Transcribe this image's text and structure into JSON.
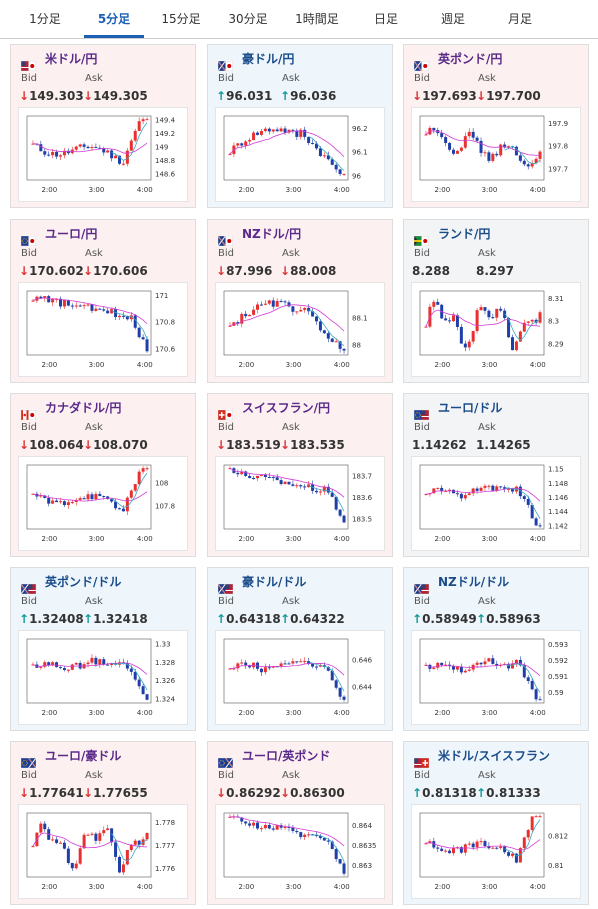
{
  "tabs": [
    "1分足",
    "5分足",
    "15分足",
    "30分足",
    "1時間足",
    "日足",
    "週足",
    "月足"
  ],
  "active_tab": "5分足",
  "labels": {
    "bid": "Bid",
    "ask": "Ask"
  },
  "colors": {
    "down_bg": "#fdf0f0",
    "up_bg": "#eef6fc",
    "down_arrow": "#d33333",
    "up_arrow": "#119999",
    "candle_up": "#e83030",
    "candle_down": "#1f3fa8",
    "ma_purple": "#d23ad6",
    "ma_teal": "#3ba8c0"
  },
  "cards": [
    {
      "pair": "米ドル/円",
      "flag": "us-jp-flag",
      "dir": "down",
      "bid": "149.303",
      "ask": "149.305",
      "chart_data": {
        "type": "candlestick",
        "x_ticks": [
          "2:00",
          "3:00",
          "4:00"
        ],
        "y_ticks": [
          "149.4",
          "149.2",
          "149",
          "148.8",
          "148.6"
        ],
        "ylim": [
          148.5,
          149.45
        ],
        "trend": "dip-recover"
      }
    },
    {
      "pair": "豪ドル/円",
      "flag": "au-jp-flag",
      "dir": "up",
      "bid": "96.031",
      "ask": "96.036",
      "chart_data": {
        "type": "candlestick",
        "x_ticks": [
          "2:00",
          "3:00",
          "4:00"
        ],
        "y_ticks": [
          "96.2",
          "96.1",
          "96"
        ],
        "ylim": [
          95.98,
          96.25
        ],
        "trend": "rise-fall"
      }
    },
    {
      "pair": "英ポンド/円",
      "flag": "gb-jp-flag",
      "dir": "down",
      "bid": "197.693",
      "ask": "197.700",
      "chart_data": {
        "type": "candlestick",
        "x_ticks": [
          "2:00",
          "3:00",
          "4:00"
        ],
        "y_ticks": [
          "197.9",
          "197.8",
          "197.7"
        ],
        "ylim": [
          197.65,
          197.93
        ],
        "trend": "choppy-fall"
      }
    },
    {
      "pair": "ユーロ/円",
      "flag": "eu-jp-flag",
      "dir": "down",
      "bid": "170.602",
      "ask": "170.606",
      "chart_data": {
        "type": "candlestick",
        "x_ticks": [
          "2:00",
          "3:00",
          "4:00"
        ],
        "y_ticks": [
          "171",
          "170.8",
          "170.6"
        ],
        "ylim": [
          170.55,
          171.03
        ],
        "trend": "steady-fall"
      }
    },
    {
      "pair": "NZドル/円",
      "flag": "nz-jp-flag",
      "dir": "down",
      "bid": "87.996",
      "ask": "88.008",
      "chart_data": {
        "type": "candlestick",
        "x_ticks": [
          "2:00",
          "3:00",
          "4:00"
        ],
        "y_ticks": [
          "88.1",
          "88"
        ],
        "ylim": [
          87.96,
          88.2
        ],
        "trend": "rise-fall"
      }
    },
    {
      "pair": "ランド/円",
      "flag": "za-jp-flag",
      "dir": "flat",
      "bid": "8.288",
      "ask": "8.297",
      "chart_data": {
        "type": "candlestick",
        "x_ticks": [
          "2:00",
          "3:00",
          "4:00"
        ],
        "y_ticks": [
          "8.31",
          "8.3",
          "8.29"
        ],
        "ylim": [
          8.285,
          8.313
        ],
        "trend": "choppy"
      }
    },
    {
      "pair": "カナダドル/円",
      "flag": "ca-jp-flag",
      "dir": "down",
      "bid": "108.064",
      "ask": "108.070",
      "chart_data": {
        "type": "candlestick",
        "x_ticks": [
          "2:00",
          "3:00",
          "4:00"
        ],
        "y_ticks": [
          "108",
          "107.8"
        ],
        "ylim": [
          107.6,
          108.15
        ],
        "trend": "dip-recover"
      }
    },
    {
      "pair": "スイスフラン/円",
      "flag": "ch-jp-flag",
      "dir": "down",
      "bid": "183.519",
      "ask": "183.535",
      "chart_data": {
        "type": "candlestick",
        "x_ticks": [
          "2:00",
          "3:00",
          "4:00"
        ],
        "y_ticks": [
          "183.7",
          "183.6",
          "183.5"
        ],
        "ylim": [
          183.45,
          183.75
        ],
        "trend": "steady-fall"
      }
    },
    {
      "pair": "ユーロ/ドル",
      "flag": "eu-us-flag",
      "dir": "flat",
      "bid": "1.14262",
      "ask": "1.14265",
      "chart_data": {
        "type": "candlestick",
        "x_ticks": [
          "2:00",
          "3:00",
          "4:00"
        ],
        "y_ticks": [
          "1.15",
          "1.148",
          "1.146",
          "1.144",
          "1.142"
        ],
        "ylim": [
          1.1415,
          1.1505
        ],
        "trend": "flat-drop"
      }
    },
    {
      "pair": "英ポンド/ドル",
      "flag": "gb-us-flag",
      "dir": "up",
      "bid": "1.32408",
      "ask": "1.32418",
      "chart_data": {
        "type": "candlestick",
        "x_ticks": [
          "2:00",
          "3:00",
          "4:00"
        ],
        "y_ticks": [
          "1.33",
          "1.328",
          "1.326",
          "1.324"
        ],
        "ylim": [
          1.3235,
          1.3305
        ],
        "trend": "flat-drop"
      }
    },
    {
      "pair": "豪ドル/ドル",
      "flag": "au-us-flag",
      "dir": "up",
      "bid": "0.64318",
      "ask": "0.64322",
      "chart_data": {
        "type": "candlestick",
        "x_ticks": [
          "2:00",
          "3:00",
          "4:00"
        ],
        "y_ticks": [
          "0.646",
          "0.644"
        ],
        "ylim": [
          0.6428,
          0.6475
        ],
        "trend": "flat-drop"
      }
    },
    {
      "pair": "NZドル/ドル",
      "flag": "nz-us-flag",
      "dir": "up",
      "bid": "0.58949",
      "ask": "0.58963",
      "chart_data": {
        "type": "candlestick",
        "x_ticks": [
          "2:00",
          "3:00",
          "4:00"
        ],
        "y_ticks": [
          "0.593",
          "0.592",
          "0.591",
          "0.59"
        ],
        "ylim": [
          0.5893,
          0.5933
        ],
        "trend": "flat-drop"
      }
    },
    {
      "pair": "ユーロ/豪ドル",
      "flag": "eu-au-flag",
      "dir": "down",
      "bid": "1.77641",
      "ask": "1.77655",
      "chart_data": {
        "type": "candlestick",
        "x_ticks": [
          "2:00",
          "3:00",
          "4:00"
        ],
        "y_ticks": [
          "1.778",
          "1.777",
          "1.776"
        ],
        "ylim": [
          1.7756,
          1.7784
        ],
        "trend": "choppy"
      }
    },
    {
      "pair": "ユーロ/英ポンド",
      "flag": "eu-gb-flag",
      "dir": "down",
      "bid": "0.86292",
      "ask": "0.86300",
      "chart_data": {
        "type": "candlestick",
        "x_ticks": [
          "2:00",
          "3:00",
          "4:00"
        ],
        "y_ticks": [
          "0.864",
          "0.8635",
          "0.863"
        ],
        "ylim": [
          0.8627,
          0.8643
        ],
        "trend": "steady-fall"
      }
    },
    {
      "pair": "米ドル/スイスフラン",
      "flag": "us-ch-flag",
      "dir": "up",
      "bid": "0.81318",
      "ask": "0.81333",
      "chart_data": {
        "type": "candlestick",
        "x_ticks": [
          "2:00",
          "3:00",
          "4:00"
        ],
        "y_ticks": [
          "0.812",
          "0.81"
        ],
        "ylim": [
          0.8092,
          0.8135
        ],
        "trend": "dip-recover"
      }
    }
  ]
}
